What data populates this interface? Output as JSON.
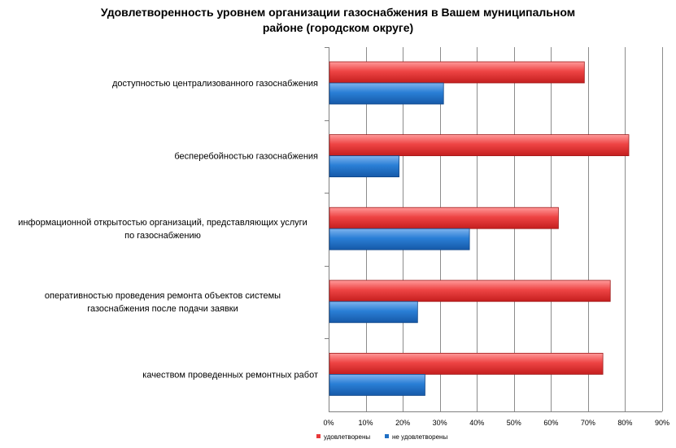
{
  "chart_data": {
    "type": "bar",
    "orientation": "horizontal",
    "title_lines": [
      "Удовлетворенность уровнем организации газоснабжения в  Вашем муниципальном",
      "районе (городском округе)"
    ],
    "categories": [
      [
        "доступностью централизованного газоснабжения"
      ],
      [
        "бесперебойностью газоснабжения"
      ],
      [
        "информационной открытостью организаций, представляющих услуги",
        "по газоснабжению"
      ],
      [
        "оперативностью проведения  ремонта объектов  системы",
        "газоснабжения после подачи заявки"
      ],
      [
        "качеством проведенных ремонтных работ"
      ]
    ],
    "series": [
      {
        "name": "удовлетворены",
        "color": "#e8393a",
        "values": [
          69,
          81,
          62,
          76,
          74
        ]
      },
      {
        "name": "не удовлетворены",
        "color": "#1f6fc4",
        "values": [
          31,
          19,
          38,
          24,
          26
        ]
      }
    ],
    "xlim": [
      0,
      90
    ],
    "xticks": [
      0,
      10,
      20,
      30,
      40,
      50,
      60,
      70,
      80,
      90
    ],
    "tick_format": "%",
    "grid": "vertical",
    "legend_position": "bottom"
  }
}
